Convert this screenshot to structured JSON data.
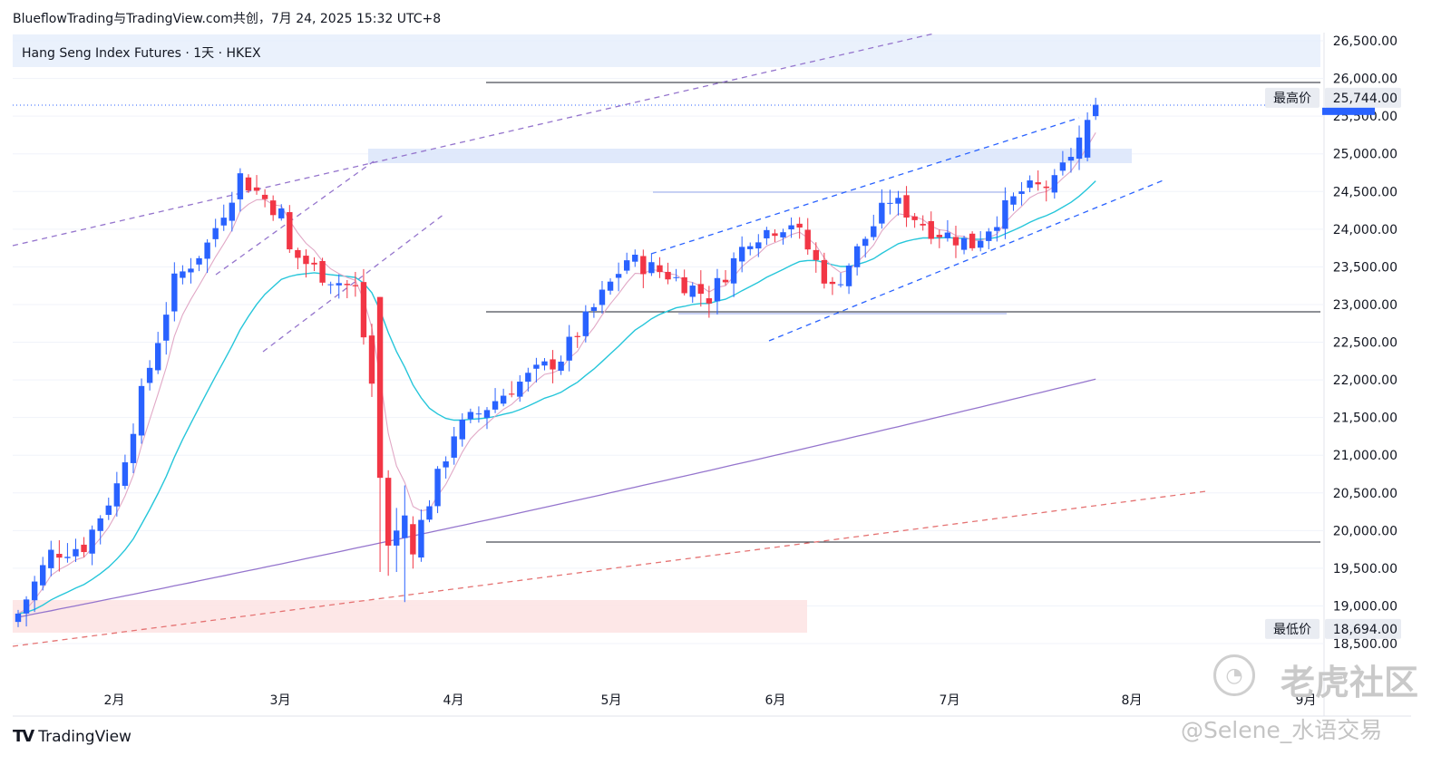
{
  "header": {
    "text": "BlueflowTrading与TradingView.com共创，7月 24, 2025 15:32 UTC+8"
  },
  "legend": {
    "symbol": "Hang Seng Index Futures · 1天 · HKEX"
  },
  "brand": {
    "name": "TradingView",
    "logo": "TV"
  },
  "watermark": {
    "text": "老虎社区",
    "user": "@Selene_水语交易"
  },
  "colors": {
    "up": "#2962ff",
    "down": "#f23645",
    "ema_fast": "#e1a8c6",
    "ema_mid": "#26c6da",
    "ma_long": "#9575cd"
  },
  "chart_data": {
    "type": "candlestick",
    "ylim": [
      18300,
      26800
    ],
    "y_ticks": [
      "26,500.00",
      "26,000.00",
      "25,500.00",
      "25,000.00",
      "24,500.00",
      "24,000.00",
      "23,500.00",
      "23,000.00",
      "22,500.00",
      "22,000.00",
      "21,500.00",
      "21,000.00",
      "20,500.00",
      "20,000.00",
      "19,500.00",
      "19,000.00",
      "18,500.00"
    ],
    "x_ticks": [
      "2月",
      "3月",
      "4月",
      "5月",
      "6月",
      "7月",
      "8月",
      "9月"
    ],
    "price_labels": [
      {
        "name": "最高价",
        "value": "25,744.00"
      },
      {
        "name": "最低价",
        "value": "18,694.00"
      }
    ],
    "anchors": [
      [
        0,
        18900
      ],
      [
        4,
        19700
      ],
      [
        8,
        19800
      ],
      [
        12,
        20600
      ],
      [
        15,
        21800
      ],
      [
        19,
        23300
      ],
      [
        23,
        23800
      ],
      [
        27,
        24700
      ],
      [
        32,
        24200
      ],
      [
        33,
        23700
      ],
      [
        37,
        23400
      ],
      [
        41,
        23200
      ],
      [
        45,
        20700
      ],
      [
        48,
        19800
      ],
      [
        53,
        21300
      ],
      [
        60,
        21900
      ],
      [
        66,
        22300
      ],
      [
        74,
        23600
      ],
      [
        79,
        23400
      ],
      [
        84,
        23100
      ],
      [
        89,
        23900
      ],
      [
        94,
        24100
      ],
      [
        99,
        23200
      ],
      [
        106,
        24400
      ],
      [
        111,
        24000
      ],
      [
        116,
        23800
      ],
      [
        122,
        24500
      ],
      [
        126,
        24600
      ],
      [
        129,
        25200
      ],
      [
        131,
        25600
      ]
    ],
    "series": [
      {
        "name": "EMA fast",
        "values": []
      },
      {
        "name": "EMA mid",
        "values": []
      },
      {
        "name": "MA long",
        "values": []
      }
    ]
  }
}
